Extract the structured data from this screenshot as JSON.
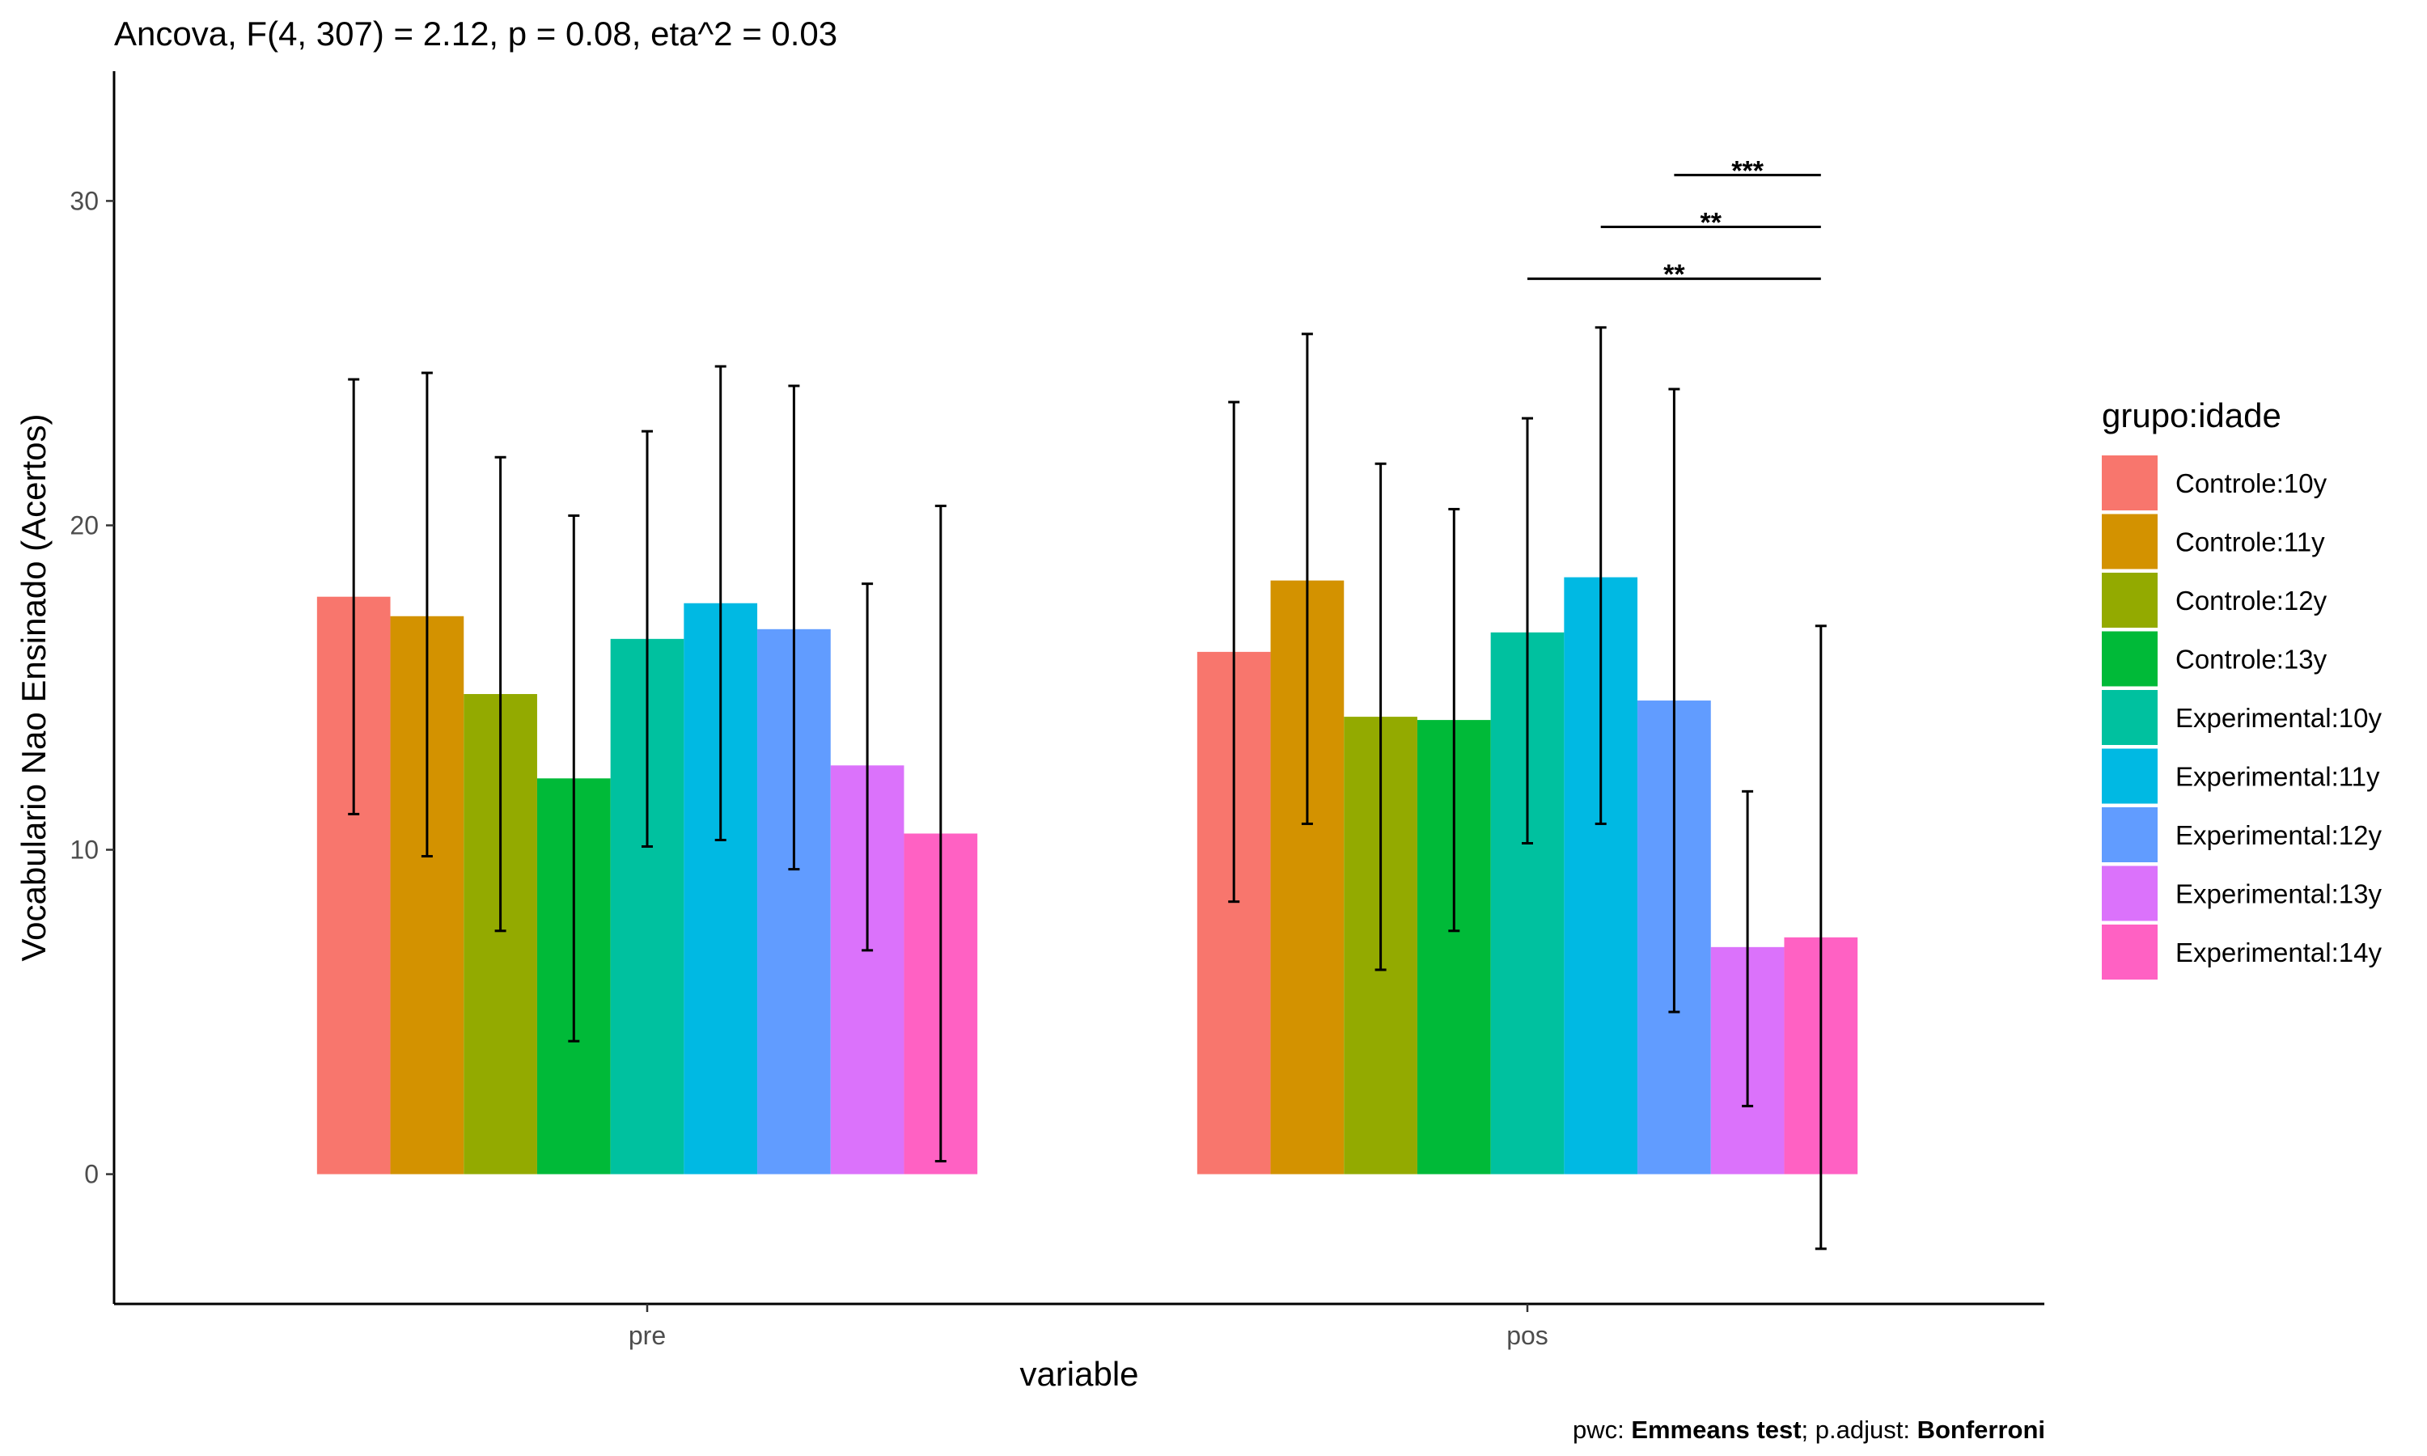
{
  "chart_data": {
    "type": "bar",
    "title": "Ancova, F(4, 307) = 2.12, p = 0.08, eta^2 = 0.03",
    "xlabel": "variable",
    "ylabel": "Vocabulario Nao Ensinado (Acertos)",
    "caption": {
      "prefix": "pwc: ",
      "test": "Emmeans test",
      "middle": "; p.adjust: ",
      "adjust": "Bonferroni"
    },
    "categories": [
      "pre",
      "pos"
    ],
    "ylim": [
      -4,
      34
    ],
    "yticks": [
      0,
      10,
      20,
      30
    ],
    "grid": false,
    "legend": {
      "title": "grupo:idade",
      "position": "right"
    },
    "series": [
      {
        "name": "Controle:10y",
        "color": "#F8766D",
        "values": [
          17.8,
          16.1
        ],
        "error_low": [
          11.1,
          8.4
        ],
        "error_high": [
          24.5,
          23.8
        ]
      },
      {
        "name": "Controle:11y",
        "color": "#D39200",
        "values": [
          17.2,
          18.3
        ],
        "error_low": [
          9.8,
          10.8
        ],
        "error_high": [
          24.7,
          25.9
        ]
      },
      {
        "name": "Controle:12y",
        "color": "#93AA00",
        "values": [
          14.8,
          14.1
        ],
        "error_low": [
          7.5,
          6.3
        ],
        "error_high": [
          22.1,
          21.9
        ]
      },
      {
        "name": "Controle:13y",
        "color": "#00BA38",
        "values": [
          12.2,
          14.0
        ],
        "error_low": [
          4.1,
          7.5
        ],
        "error_high": [
          20.3,
          20.5
        ]
      },
      {
        "name": "Experimental:10y",
        "color": "#00C19F",
        "values": [
          16.5,
          16.7
        ],
        "error_low": [
          10.1,
          10.2
        ],
        "error_high": [
          22.9,
          23.3
        ]
      },
      {
        "name": "Experimental:11y",
        "color": "#00B9E3",
        "values": [
          17.6,
          18.4
        ],
        "error_low": [
          10.3,
          10.8
        ],
        "error_high": [
          24.9,
          26.1
        ]
      },
      {
        "name": "Experimental:12y",
        "color": "#619CFF",
        "values": [
          16.8,
          14.6
        ],
        "error_low": [
          9.4,
          5.0
        ],
        "error_high": [
          24.3,
          24.2
        ]
      },
      {
        "name": "Experimental:13y",
        "color": "#DB72FB",
        "values": [
          12.6,
          7.0
        ],
        "error_low": [
          6.9,
          2.1
        ],
        "error_high": [
          18.2,
          11.8
        ]
      },
      {
        "name": "Experimental:14y",
        "color": "#FF61C3",
        "values": [
          10.5,
          7.3
        ],
        "error_low": [
          0.4,
          -2.3
        ],
        "error_high": [
          20.6,
          16.9
        ]
      }
    ],
    "significance": [
      {
        "category": "pos",
        "from_series": 6,
        "to_series": 8,
        "y": 30.8,
        "label": "***"
      },
      {
        "category": "pos",
        "from_series": 5,
        "to_series": 8,
        "y": 29.2,
        "label": "**"
      },
      {
        "category": "pos",
        "from_series": 4,
        "to_series": 8,
        "y": 27.6,
        "label": "**"
      }
    ]
  }
}
